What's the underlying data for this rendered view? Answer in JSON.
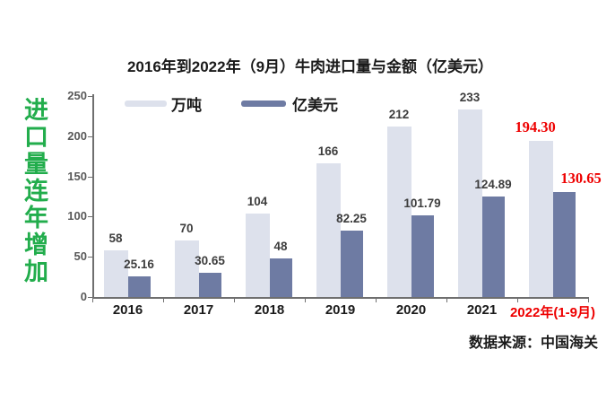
{
  "banner": {
    "text": "进口量连年增加"
  },
  "chart_data": {
    "type": "bar",
    "title": "2016年到2022年（9月）牛肉进口量与金额（亿美元）",
    "categories": [
      "2016",
      "2017",
      "2018",
      "2019",
      "2020",
      "2021",
      "2022年(1-9月)"
    ],
    "series": [
      {
        "name": "万吨",
        "color": "#dde1ec",
        "values": [
          58,
          70,
          104,
          166,
          212,
          233,
          194.3
        ],
        "labels": [
          "58",
          "70",
          "104",
          "166",
          "212",
          "233",
          "194.30"
        ]
      },
      {
        "name": "亿美元",
        "color": "#6e7ba3",
        "values": [
          25.16,
          30.65,
          48,
          82.25,
          101.79,
          124.89,
          130.65
        ],
        "labels": [
          "25.16",
          "30.65",
          "48",
          "82.25",
          "101.79",
          "124.89",
          "130.65"
        ]
      }
    ],
    "ylim": [
      0,
      250
    ],
    "yticks": [
      0,
      50,
      100,
      150,
      200,
      250
    ],
    "grid": false,
    "legend_position": "top",
    "highlight_last_category": true,
    "source": "数据来源：中国海关"
  },
  "colors": {
    "banner_green": "#22ad4c",
    "highlight_red": "#ee0000",
    "axis": "#6f6f6f",
    "value_label": "#3d3d3d",
    "ytick_label": "#595959"
  }
}
